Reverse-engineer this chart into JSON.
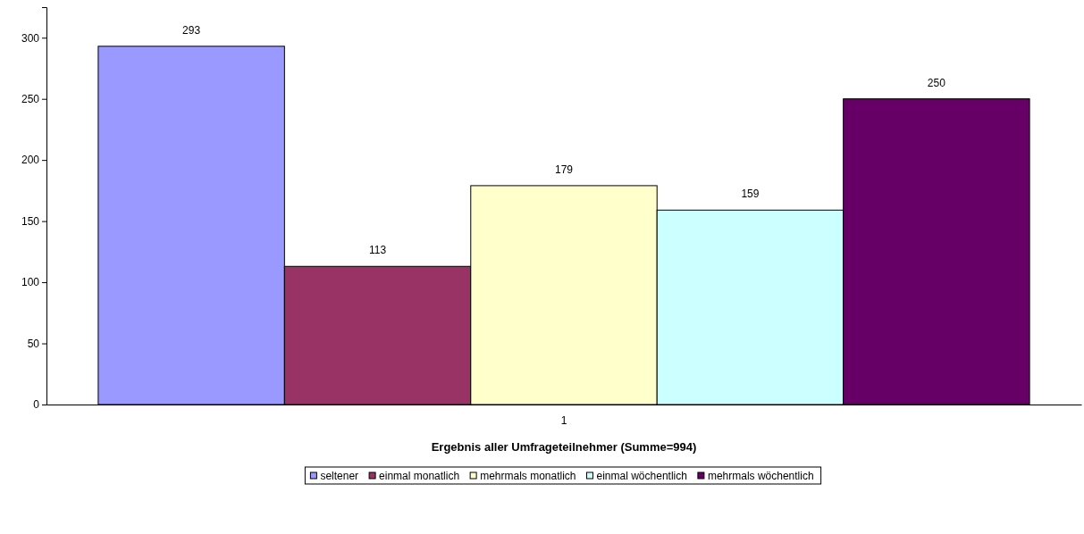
{
  "chart_data": {
    "type": "bar",
    "xlabel": "Ergebnis aller Umfrageteilnehmer (Summe=994)",
    "categories": [
      "1"
    ],
    "series": [
      {
        "name": "seltener",
        "color": "#9999ff",
        "values": [
          293
        ]
      },
      {
        "name": "einmal monatlich",
        "color": "#993366",
        "values": [
          113
        ]
      },
      {
        "name": "mehrmals monatlich",
        "color": "#ffffcc",
        "values": [
          179
        ]
      },
      {
        "name": "einmal wöchentlich",
        "color": "#ccffff",
        "values": [
          159
        ]
      },
      {
        "name": "mehrmals wöchentlich",
        "color": "#660066",
        "values": [
          250
        ]
      }
    ],
    "ylim": [
      0,
      325
    ],
    "yticks": [
      0,
      50,
      100,
      150,
      200,
      250,
      300
    ],
    "grid": false,
    "legend": "bottom",
    "data_labels": true
  }
}
